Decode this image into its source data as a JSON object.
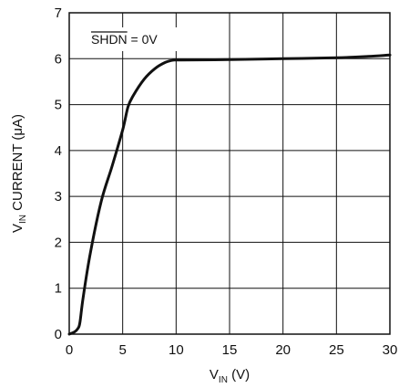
{
  "chart_data": {
    "type": "line",
    "xlabel": {
      "main": "V",
      "sub": "IN",
      "rest": " (V)"
    },
    "ylabel": {
      "main": "V",
      "sub": "IN",
      "rest": " CURRENT (μA)"
    },
    "annotation": {
      "overbar_text": "SHDN",
      "rest": " = 0V"
    },
    "xlim": [
      0,
      30
    ],
    "ylim": [
      0,
      7
    ],
    "x_ticks": [
      0,
      5,
      10,
      15,
      20,
      25,
      30
    ],
    "y_ticks": [
      0,
      1,
      2,
      3,
      4,
      5,
      6,
      7
    ],
    "grid": true,
    "series": [
      {
        "x": [
          0,
          0.5,
          0.8,
          1,
          1.3,
          2,
          3,
          4,
          5,
          5.5,
          6,
          7,
          8,
          9,
          9.8,
          10.5,
          15,
          20,
          25,
          28,
          30
        ],
        "y": [
          0,
          0.05,
          0.12,
          0.25,
          0.8,
          1.8,
          2.9,
          3.65,
          4.45,
          4.95,
          5.2,
          5.55,
          5.78,
          5.92,
          5.97,
          5.97,
          5.98,
          6.0,
          6.02,
          6.05,
          6.08
        ]
      }
    ]
  }
}
